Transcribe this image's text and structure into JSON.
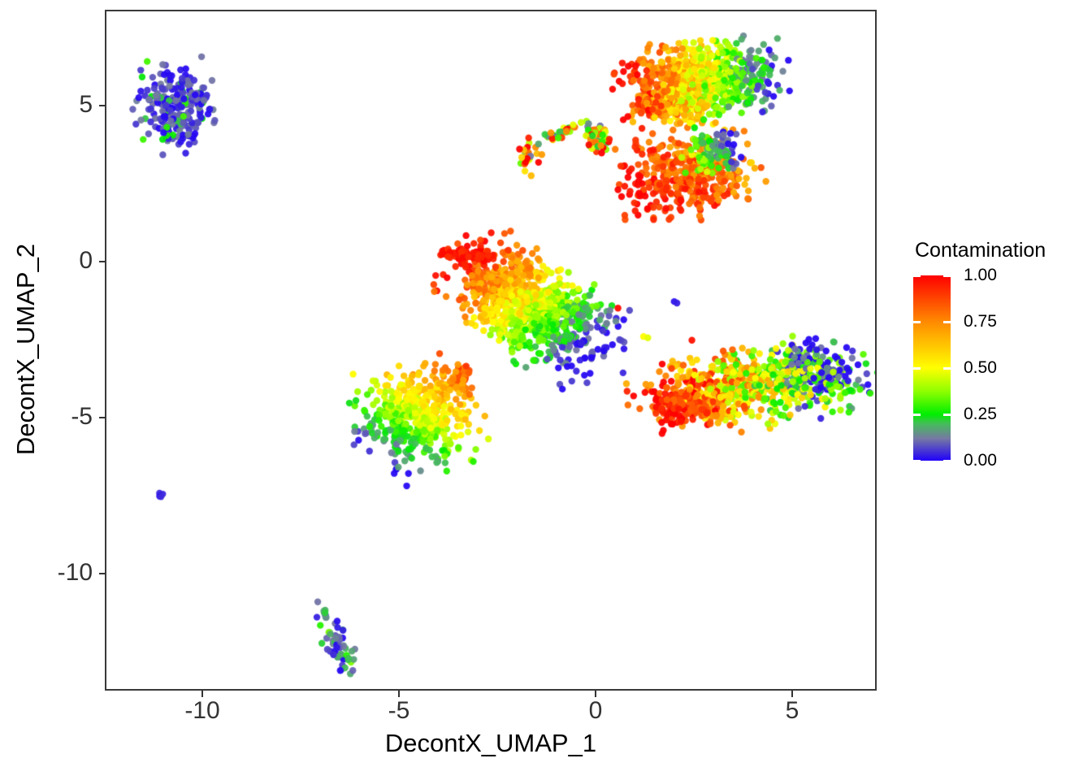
{
  "chart_data": {
    "type": "scatter",
    "title": "",
    "xlabel": "DecontX_UMAP_1",
    "ylabel": "DecontX_UMAP_2",
    "x_range": [
      -12.4,
      7.1
    ],
    "y_range": [
      -13.7,
      8.0
    ],
    "grid": false,
    "background": "#ffffff",
    "x_ticks": [
      {
        "v": -10,
        "label": "-10"
      },
      {
        "v": -5,
        "label": "-5"
      },
      {
        "v": 0,
        "label": "0"
      },
      {
        "v": 5,
        "label": "5"
      }
    ],
    "y_ticks": [
      {
        "v": 5,
        "label": "5"
      },
      {
        "v": 0,
        "label": "0"
      },
      {
        "v": -5,
        "label": "-5"
      },
      {
        "v": -10,
        "label": "-10"
      }
    ],
    "legend": {
      "title": "Contamination",
      "position": "right",
      "labels": [
        {
          "v": 1.0,
          "label": "1.00"
        },
        {
          "v": 0.75,
          "label": "0.75"
        },
        {
          "v": 0.5,
          "label": "0.50"
        },
        {
          "v": 0.25,
          "label": "0.25"
        },
        {
          "v": 0.0,
          "label": "0.00"
        }
      ],
      "colormap_stops": [
        [
          0.0,
          "#2000FA"
        ],
        [
          0.12,
          "#7679A3"
        ],
        [
          0.2,
          "#44BD59"
        ],
        [
          0.25,
          "#00EE00"
        ],
        [
          0.375,
          "#8FFF00"
        ],
        [
          0.5,
          "#FFFF00"
        ],
        [
          0.625,
          "#FFC400"
        ],
        [
          0.75,
          "#FF8A00"
        ],
        [
          0.875,
          "#FF4500"
        ],
        [
          1.0,
          "#FF0000"
        ]
      ]
    },
    "point_style": {
      "radius": 4.2,
      "alpha": 0.95
    },
    "clusters": [
      {
        "name": "top-left-blue",
        "kind": "blob",
        "cx": -10.7,
        "cy": 4.95,
        "sx": 0.42,
        "sy": 0.6,
        "rot": 0.15,
        "n": 240,
        "grad": {
          "c0": 0.06,
          "noise": 0.07
        },
        "spice_frac": 0.12,
        "spice_add": 0.2
      },
      {
        "name": "top-right-main",
        "kind": "blob",
        "cx": 2.72,
        "cy": 5.95,
        "sx": 0.85,
        "sy": 0.52,
        "rot": 0.06,
        "n": 620,
        "grad": {
          "x0": 0.9,
          "y0": 5.9,
          "c0": 0.93,
          "x1": 4.7,
          "y1": 6.1,
          "c1": 0.04,
          "noise": 0.15
        }
      },
      {
        "name": "top-right-lower",
        "kind": "blob",
        "cx": 2.1,
        "cy": 5.05,
        "sx": 0.6,
        "sy": 0.28,
        "rot": -0.05,
        "n": 170,
        "grad": {
          "x0": 0.9,
          "y0": 5.0,
          "c0": 0.9,
          "x1": 4.5,
          "y1": 5.2,
          "c1": 0.1,
          "noise": 0.2
        }
      },
      {
        "name": "hook-arc",
        "kind": "path",
        "pts": [
          [
            -1.83,
            2.75
          ],
          [
            -1.75,
            3.35
          ],
          [
            -1.45,
            3.85
          ],
          [
            -0.95,
            4.15
          ],
          [
            -0.45,
            4.3
          ],
          [
            0.05,
            4.15
          ],
          [
            0.22,
            3.95
          ]
        ],
        "jitter": 0.13,
        "n": 70,
        "grad": {
          "c0": 0.6,
          "noise": 0.5
        }
      },
      {
        "name": "hook-end-blob",
        "kind": "blob",
        "cx": 0.1,
        "cy": 3.8,
        "sx": 0.18,
        "sy": 0.18,
        "rot": 0,
        "n": 25,
        "grad": {
          "c0": 0.6,
          "noise": 0.5
        }
      },
      {
        "name": "red-cluster",
        "kind": "blob",
        "cx": 2.3,
        "cy": 2.8,
        "sx": 0.72,
        "sy": 0.6,
        "rot": 0.25,
        "n": 400,
        "grad": {
          "x0": 1.2,
          "y0": 1.8,
          "c0": 0.97,
          "x1": 3.2,
          "y1": 3.8,
          "c1": 0.72,
          "noise": 0.13
        }
      },
      {
        "name": "red-cluster-cool-pocket",
        "kind": "blob",
        "cx": 3.0,
        "cy": 3.5,
        "sx": 0.32,
        "sy": 0.3,
        "rot": 0,
        "n": 95,
        "grad": {
          "x0": 2.6,
          "y0": 3.3,
          "c0": 0.4,
          "x1": 3.5,
          "y1": 3.6,
          "c1": 0.04,
          "noise": 0.12
        }
      },
      {
        "name": "center-cluster",
        "kind": "blob",
        "cx": -1.7,
        "cy": -1.35,
        "sx": 1.12,
        "sy": 0.62,
        "rot": -0.7,
        "n": 900,
        "grad": {
          "x0": -3.2,
          "y0": 0.3,
          "c0": 0.97,
          "x1": -0.3,
          "y1": -2.9,
          "c1": 0.04,
          "noise": 0.12
        }
      },
      {
        "name": "center-red-tail",
        "kind": "blob",
        "cx": -3.3,
        "cy": 0.18,
        "sx": 0.3,
        "sy": 0.08,
        "rot": -0.15,
        "n": 70,
        "grad": {
          "c0": 0.95,
          "noise": 0.05
        }
      },
      {
        "name": "left-mid-cluster",
        "kind": "blob",
        "cx": -4.6,
        "cy": -5.0,
        "sx": 0.68,
        "sy": 0.72,
        "rot": 0.35,
        "n": 450,
        "grad": {
          "x0": -5.6,
          "y0": -6.5,
          "c0": 0.02,
          "x1": -3.5,
          "y1": -3.6,
          "c1": 0.8,
          "noise": 0.09
        }
      },
      {
        "name": "left-mid-orange-arm",
        "kind": "blob",
        "cx": -3.6,
        "cy": -3.85,
        "sx": 0.28,
        "sy": 0.22,
        "rot": 0.5,
        "n": 70,
        "grad": {
          "x0": -4.0,
          "y0": -4.2,
          "c0": 0.6,
          "x1": -3.3,
          "y1": -3.5,
          "c1": 0.85,
          "noise": 0.1
        }
      },
      {
        "name": "right-cluster-west-lobe",
        "kind": "blob",
        "cx": 3.1,
        "cy": -4.2,
        "sx": 0.9,
        "sy": 0.5,
        "rot": 0.15,
        "n": 430,
        "grad": {
          "x0": 1.8,
          "y0": -5.0,
          "c0": 0.95,
          "x1": 6.5,
          "y1": -3.0,
          "c1": 0.03,
          "noise": 0.3
        }
      },
      {
        "name": "right-cluster-east-lobe",
        "kind": "blob",
        "cx": 5.3,
        "cy": -3.6,
        "sx": 0.78,
        "sy": 0.5,
        "rot": -0.12,
        "n": 340,
        "grad": {
          "x0": 1.8,
          "y0": -5.0,
          "c0": 0.95,
          "x1": 6.5,
          "y1": -3.0,
          "c1": 0.03,
          "noise": 0.3
        }
      },
      {
        "name": "right-cluster-red-tip",
        "kind": "blob",
        "cx": 2.2,
        "cy": -4.7,
        "sx": 0.3,
        "sy": 0.28,
        "rot": 0.3,
        "n": 100,
        "grad": {
          "x0": 1.9,
          "y0": -5.2,
          "c0": 1.0,
          "x1": 2.8,
          "y1": -4.0,
          "c1": 0.75,
          "noise": 0.1
        }
      },
      {
        "name": "bottom-small-blob",
        "kind": "blob",
        "cx": -6.52,
        "cy": -12.3,
        "sx": 0.16,
        "sy": 0.42,
        "rot": 0.25,
        "n": 55,
        "grad": {
          "c0": 0.1,
          "noise": 0.12
        },
        "spice_frac": 0.1,
        "spice_add": 0.15
      },
      {
        "name": "bottom-trail",
        "kind": "path",
        "pts": [
          [
            -7.07,
            -10.9
          ],
          [
            -6.8,
            -11.45
          ]
        ],
        "jitter": 0.08,
        "n": 8,
        "grad": {
          "c0": 0.12,
          "noise": 0.1
        }
      },
      {
        "name": "left-small-dot",
        "kind": "blob",
        "cx": -11.05,
        "cy": -7.45,
        "sx": 0.07,
        "sy": 0.06,
        "rot": 0,
        "n": 4,
        "grad": {
          "c0": 0.03,
          "noise": 0.02
        }
      }
    ],
    "sparse_points": [
      [
        0.57,
        -1.49,
        0.98
      ],
      [
        2.0,
        -1.28,
        0.02
      ],
      [
        2.07,
        -1.33,
        0.03
      ],
      [
        1.22,
        -2.4,
        0.5
      ],
      [
        1.33,
        -2.44,
        0.47
      ],
      [
        2.45,
        -2.52,
        0.97
      ],
      [
        0.35,
        3.92,
        0.95
      ],
      [
        0.5,
        3.6,
        0.78
      ],
      [
        1.18,
        4.27,
        0.95
      ],
      [
        1.45,
        4.1,
        0.82
      ],
      [
        1.97,
        4.22,
        0.78
      ],
      [
        2.4,
        4.45,
        0.5
      ],
      [
        2.75,
        4.55,
        0.28
      ],
      [
        1.5,
        4.62,
        0.55
      ],
      [
        2.05,
        4.78,
        0.6
      ],
      [
        1.45,
        4.88,
        0.9
      ],
      [
        0.95,
        4.48,
        0.65
      ],
      [
        2.6,
        4.9,
        0.45
      ],
      [
        -3.5,
        -3.3,
        0.72
      ]
    ]
  },
  "colors": {
    "axis_text": "#333333",
    "axis_title": "#000000",
    "panel_border": "#3a3a3a"
  }
}
